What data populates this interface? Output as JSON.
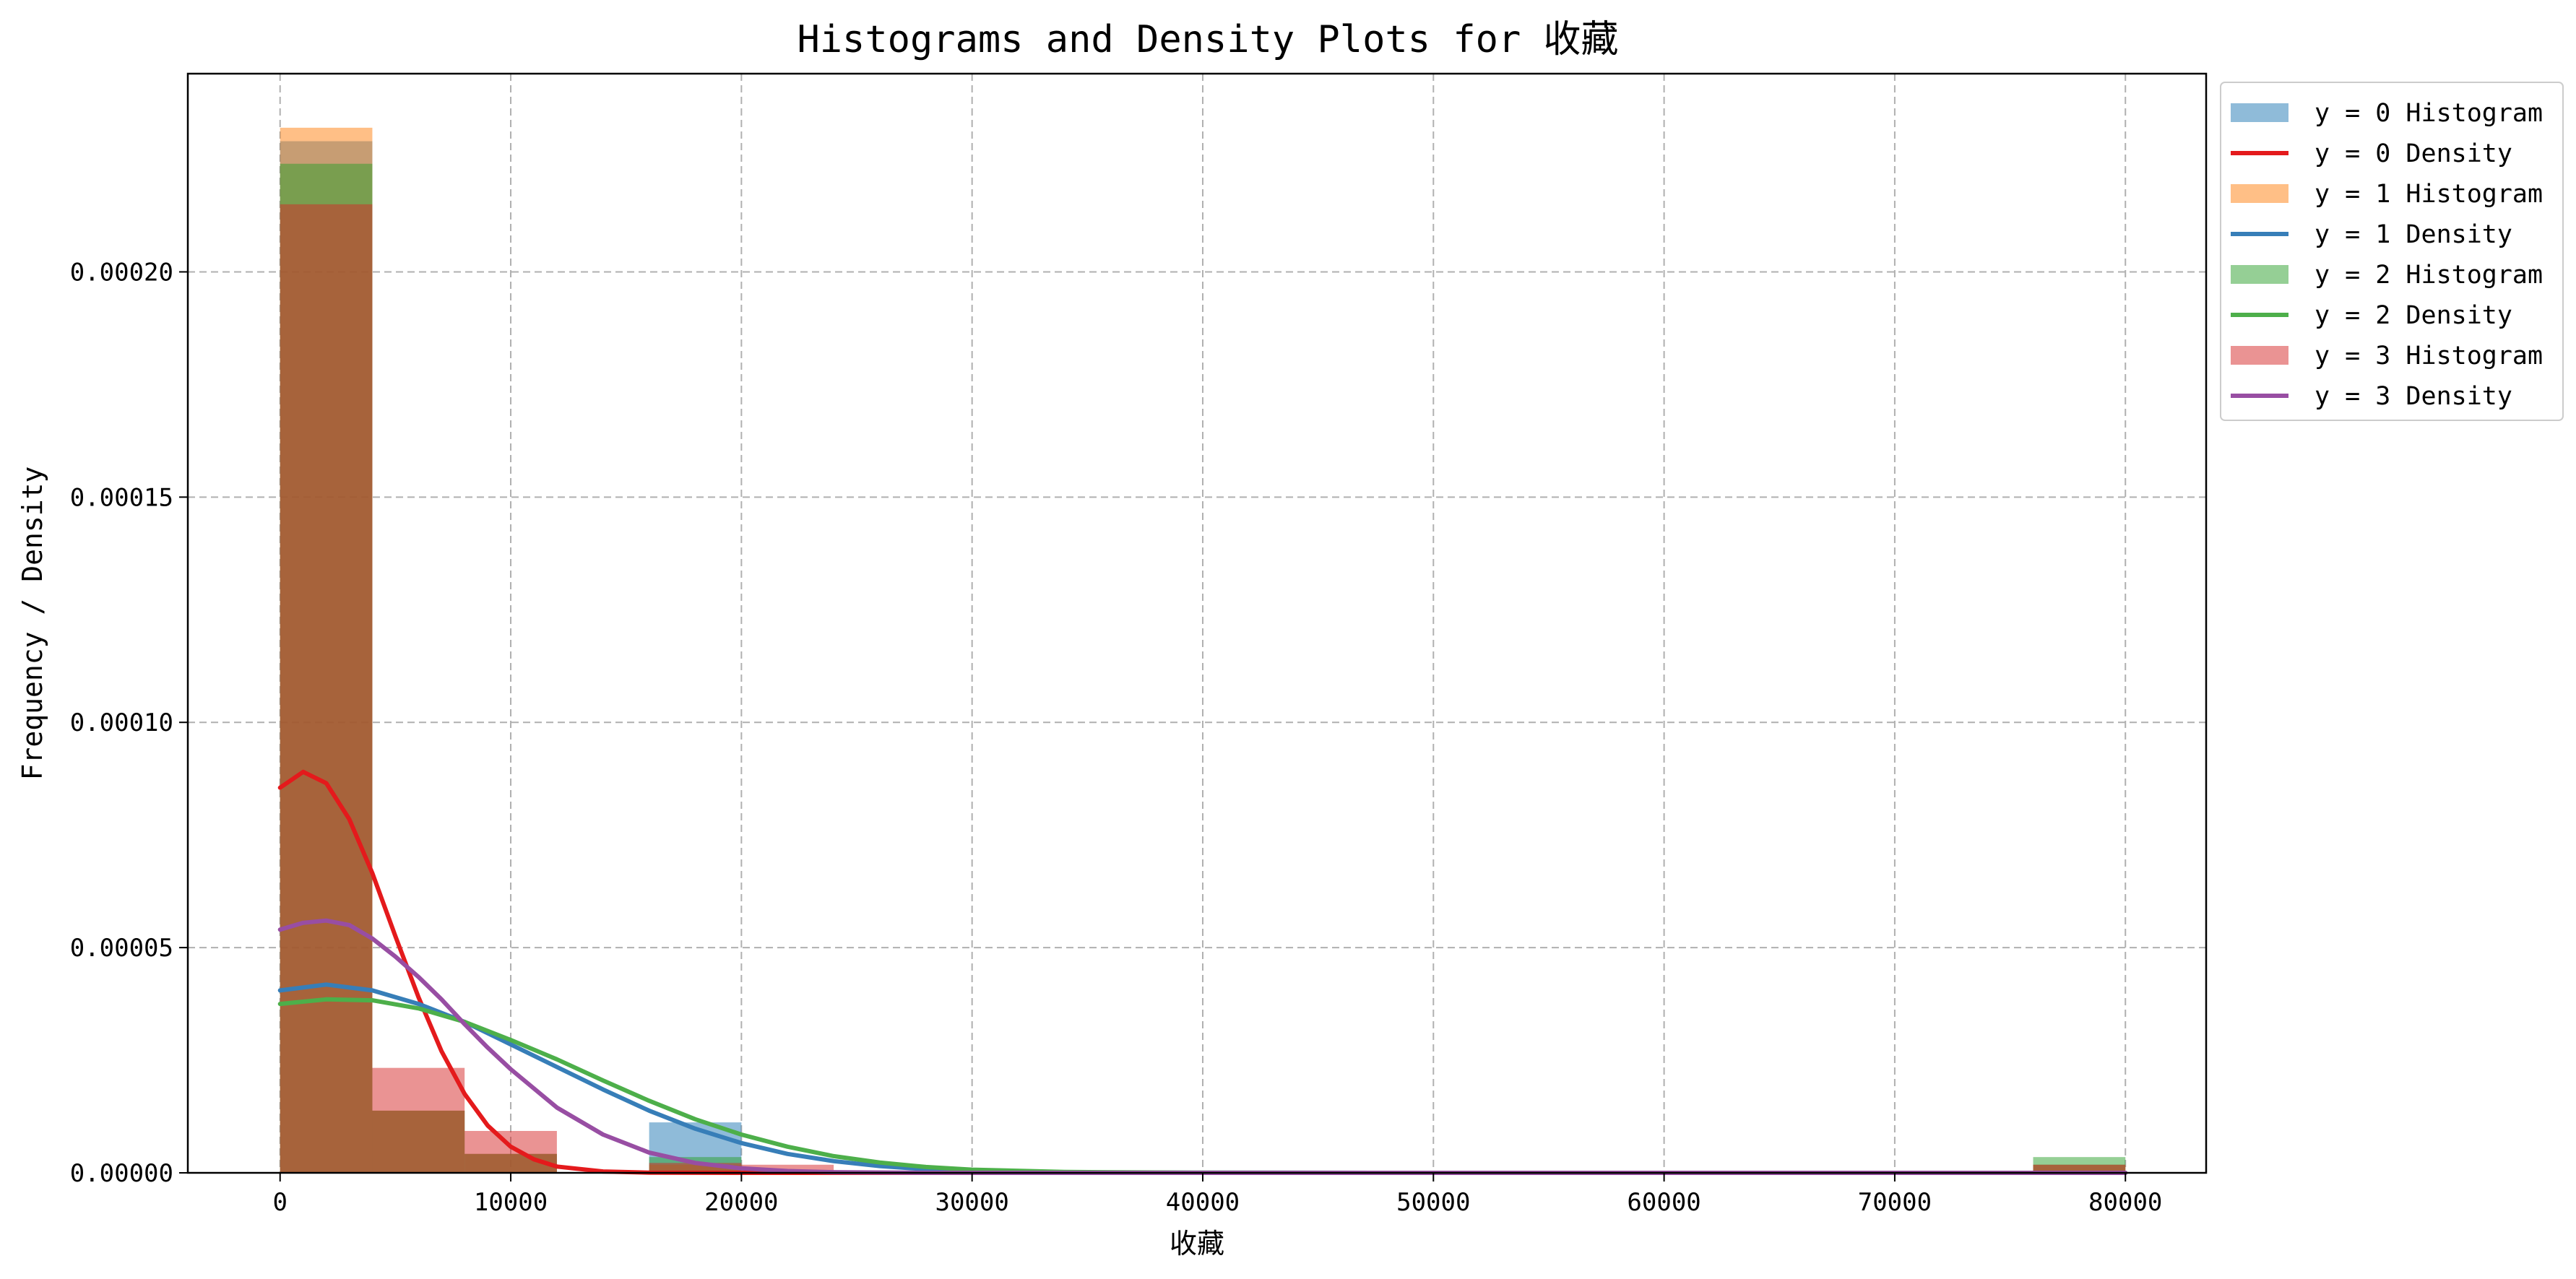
{
  "chart_data": {
    "type": "bar",
    "title": "Histograms and Density Plots for 收藏",
    "xlabel": "收藏",
    "ylabel": "Frequency / Density",
    "xlim": [
      -4000,
      83500
    ],
    "ylim": [
      0,
      0.000244
    ],
    "x_ticks": [
      {
        "value": 0,
        "label": "0"
      },
      {
        "value": 10000,
        "label": "10000"
      },
      {
        "value": 20000,
        "label": "20000"
      },
      {
        "value": 30000,
        "label": "30000"
      },
      {
        "value": 40000,
        "label": "40000"
      },
      {
        "value": 50000,
        "label": "50000"
      },
      {
        "value": 60000,
        "label": "60000"
      },
      {
        "value": 70000,
        "label": "70000"
      },
      {
        "value": 80000,
        "label": "80000"
      }
    ],
    "y_ticks": [
      {
        "value": 0,
        "label": "0.00000"
      },
      {
        "value": 5e-05,
        "label": "0.00005"
      },
      {
        "value": 0.0001,
        "label": "0.00010"
      },
      {
        "value": 0.00015,
        "label": "0.00015"
      },
      {
        "value": 0.0002,
        "label": "0.00020"
      }
    ],
    "grid": true,
    "legend_position": "outside-top-right",
    "bin_edges": [
      0,
      4000,
      8000,
      12000,
      16000,
      20000,
      24000,
      28000,
      32000,
      36000,
      40000,
      44000,
      48000,
      52000,
      56000,
      60000,
      64000,
      68000,
      72000,
      76000,
      80000
    ],
    "histograms": [
      {
        "label": "y = 0 Histogram",
        "color": "#1f77b4",
        "values": [
          0.000229,
          1.38e-05,
          4.2e-06,
          0,
          1.12e-05,
          0,
          0,
          0,
          0,
          0,
          0,
          0,
          0,
          0,
          0,
          0,
          0,
          0,
          0,
          1.8e-06
        ]
      },
      {
        "label": "y = 1 Histogram",
        "color": "#ff7f0e",
        "values": [
          0.000232,
          1.38e-05,
          4.2e-06,
          0,
          1.8e-06,
          0,
          0,
          0,
          0,
          0,
          0,
          0,
          0,
          0,
          0,
          0,
          0,
          0,
          0,
          1.8e-06
        ]
      },
      {
        "label": "y = 2 Histogram",
        "color": "#2ca02c",
        "values": [
          0.000224,
          1.38e-05,
          4.2e-06,
          0,
          3.5e-06,
          0,
          0,
          0,
          0,
          0,
          0,
          0,
          0,
          0,
          0,
          0,
          0,
          0,
          0,
          3.5e-06
        ]
      },
      {
        "label": "y = 3 Histogram",
        "color": "#d62728",
        "values": [
          0.000215,
          2.33e-05,
          9.3e-06,
          0,
          2.2e-06,
          1.8e-06,
          0,
          0,
          0,
          0,
          0,
          0,
          0,
          0,
          0,
          0,
          0,
          0,
          0,
          1.8e-06
        ]
      }
    ],
    "densities": [
      {
        "label": "y = 0 Density",
        "color": "#e41a1c",
        "x": [
          0,
          1000,
          2000,
          3000,
          4000,
          5000,
          6000,
          7000,
          8000,
          9000,
          10000,
          11000,
          12000,
          14000,
          16000,
          20000,
          30000,
          80000
        ],
        "y": [
          8.55e-05,
          8.9e-05,
          8.65e-05,
          7.85e-05,
          6.65e-05,
          5.25e-05,
          3.9e-05,
          2.7e-05,
          1.75e-05,
          1.05e-05,
          5.8e-06,
          3e-06,
          1.4e-06,
          3e-07,
          5e-08,
          0,
          0,
          0
        ]
      },
      {
        "label": "y = 1 Density",
        "color": "#377eb8",
        "x": [
          0,
          2000,
          4000,
          6000,
          8000,
          10000,
          12000,
          14000,
          16000,
          18000,
          20000,
          22000,
          24000,
          26000,
          28000,
          30000,
          34000,
          40000,
          50000,
          80000
        ],
        "y": [
          4.05e-05,
          4.18e-05,
          4.05e-05,
          3.75e-05,
          3.35e-05,
          2.85e-05,
          2.35e-05,
          1.85e-05,
          1.38e-05,
          9.8e-06,
          6.6e-06,
          4.2e-06,
          2.6e-06,
          1.5e-06,
          8e-07,
          4e-07,
          1e-07,
          2e-08,
          0,
          0
        ]
      },
      {
        "label": "y = 2 Density",
        "color": "#4daf4a",
        "x": [
          0,
          2000,
          4000,
          6000,
          8000,
          10000,
          12000,
          14000,
          16000,
          18000,
          20000,
          22000,
          24000,
          26000,
          28000,
          30000,
          34000,
          40000,
          50000,
          80000
        ],
        "y": [
          3.75e-05,
          3.85e-05,
          3.83e-05,
          3.65e-05,
          3.35e-05,
          2.95e-05,
          2.52e-05,
          2.05e-05,
          1.6e-05,
          1.19e-05,
          8.5e-06,
          5.8e-06,
          3.7e-06,
          2.3e-06,
          1.3e-06,
          7e-07,
          2e-07,
          3e-08,
          0,
          0
        ]
      },
      {
        "label": "y = 3 Density",
        "color": "#984ea3",
        "x": [
          0,
          1000,
          2000,
          3000,
          4000,
          5000,
          6000,
          7000,
          8000,
          9000,
          10000,
          12000,
          14000,
          16000,
          18000,
          20000,
          22000,
          24000,
          28000,
          35000,
          80000
        ],
        "y": [
          5.4e-05,
          5.55e-05,
          5.6e-05,
          5.5e-05,
          5.2e-05,
          4.8e-05,
          4.35e-05,
          3.85e-05,
          3.3e-05,
          2.78e-05,
          2.3e-05,
          1.45e-05,
          8.5e-06,
          4.5e-06,
          2.2e-06,
          1e-06,
          4e-07,
          1.5e-07,
          2e-08,
          0,
          0
        ]
      }
    ],
    "legend": [
      {
        "label": "y = 0 Histogram",
        "kind": "patch",
        "color": "#1f77b4"
      },
      {
        "label": "y = 0 Density",
        "kind": "line",
        "color": "#e41a1c"
      },
      {
        "label": "y = 1 Histogram",
        "kind": "patch",
        "color": "#ff7f0e"
      },
      {
        "label": "y = 1 Density",
        "kind": "line",
        "color": "#377eb8"
      },
      {
        "label": "y = 2 Histogram",
        "kind": "patch",
        "color": "#2ca02c"
      },
      {
        "label": "y = 2 Density",
        "kind": "line",
        "color": "#4daf4a"
      },
      {
        "label": "y = 3 Histogram",
        "kind": "patch",
        "color": "#d62728"
      },
      {
        "label": "y = 3 Density",
        "kind": "line",
        "color": "#984ea3"
      }
    ]
  }
}
